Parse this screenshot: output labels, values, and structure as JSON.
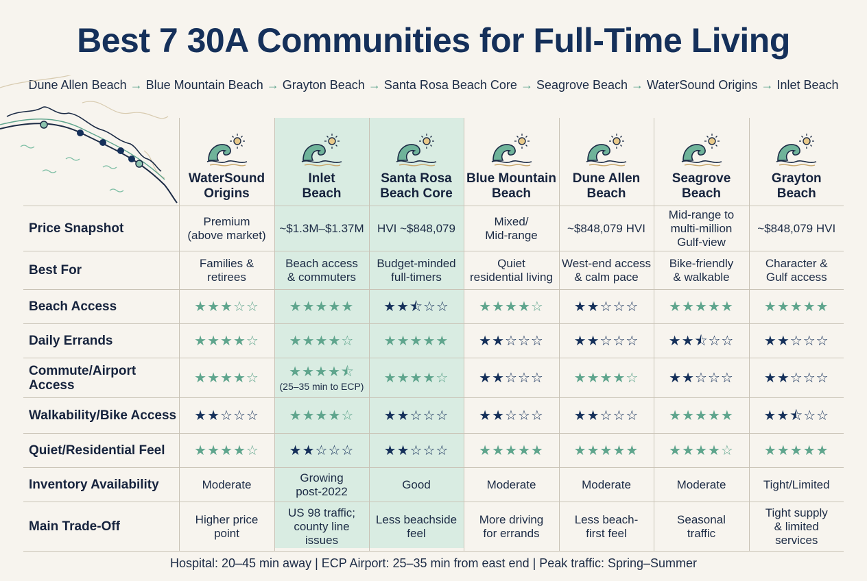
{
  "title": "Best 7 30A Communities for Full-Time Living",
  "route": [
    "Dune Allen Beach",
    "Blue Mountain Beach",
    "Grayton Beach",
    "Santa Rosa Beach Core",
    "Seagrove Beach",
    "WaterSound Origins",
    "Inlet Beach"
  ],
  "route_arrow": "→",
  "colors": {
    "teal": "#5fa58d",
    "navy": "#15305a",
    "highlight": "#d9ece2"
  },
  "columns": [
    {
      "line1": "WaterSound",
      "line2": "Origins"
    },
    {
      "line1": "Inlet",
      "line2": "Beach"
    },
    {
      "line1": "Santa Rosa",
      "line2": "Beach Core"
    },
    {
      "line1": "Blue Mountain",
      "line2": "Beach"
    },
    {
      "line1": "Dune Allen",
      "line2": "Beach"
    },
    {
      "line1": "Seagrove",
      "line2": "Beach"
    },
    {
      "line1": "Grayton",
      "line2": "Beach"
    }
  ],
  "rows": {
    "price": {
      "label": "Price Snapshot",
      "cells": [
        "Premium\n(above market)",
        "~$1.3M–$1.37M",
        "HVI ~$848,079",
        "Mixed/\nMid-range",
        "~$848,079 HVI",
        "Mid-range to\nmulti-million\nGulf-view",
        "~$848,079 HVI"
      ]
    },
    "bestfor": {
      "label": "Best For",
      "cells": [
        "Families &\nretirees",
        "Beach access\n& commuters",
        "Budget-minded\nfull-timers",
        "Quiet\nresidential living",
        "West-end access\n& calm pace",
        "Bike-friendly\n& walkable",
        "Character &\nGulf access"
      ]
    },
    "beach": {
      "label": "Beach Access",
      "ratings": [
        3,
        5,
        2.5,
        4,
        2,
        5,
        5
      ],
      "tones": [
        "teal",
        "teal",
        "navy",
        "teal",
        "navy",
        "teal",
        "teal"
      ]
    },
    "errands": {
      "label": "Daily Errands",
      "ratings": [
        4,
        4,
        5,
        2,
        2,
        2.5,
        2
      ],
      "tones": [
        "teal",
        "teal",
        "teal",
        "navy",
        "navy",
        "navy",
        "navy"
      ]
    },
    "commute": {
      "label": "Commute/Airport\nAccess",
      "ratings": [
        4,
        4.5,
        4,
        2,
        4,
        2,
        2
      ],
      "tones": [
        "teal",
        "teal",
        "teal",
        "navy",
        "teal",
        "navy",
        "navy"
      ],
      "note_index": 1,
      "note": "(25–35 min to ECP)"
    },
    "walk": {
      "label": "Walkability/Bike Access",
      "ratings": [
        2,
        4,
        2,
        2,
        2,
        5,
        2.5
      ],
      "tones": [
        "navy",
        "teal",
        "navy",
        "navy",
        "navy",
        "teal",
        "navy"
      ]
    },
    "quiet": {
      "label": "Quiet/Residential Feel",
      "ratings": [
        4,
        2,
        2,
        5,
        5,
        4,
        5
      ],
      "tones": [
        "teal",
        "navy",
        "navy",
        "teal",
        "teal",
        "teal",
        "teal"
      ]
    },
    "inventory": {
      "label": "Inventory Availability",
      "cells": [
        "Moderate",
        "Growing\npost-2022",
        "Good",
        "Moderate",
        "Moderate",
        "Moderate",
        "Tight/Limited"
      ]
    },
    "tradeoff": {
      "label": "Main Trade-Off",
      "cells": [
        "Higher price\npoint",
        "US 98 traffic;\ncounty line\nissues",
        "Less beachside\nfeel",
        "More driving\nfor errands",
        "Less beach-\nfirst feel",
        "Seasonal\ntraffic",
        "Tight supply\n& limited\nservices"
      ]
    }
  },
  "footer": "Hospital: 20–45 min away | ECP Airport: 25–35 min from east end | Peak traffic: Spring–Summer",
  "icons": {
    "column_icon": "wave-sun-icon",
    "map": "coastline-map-icon"
  }
}
